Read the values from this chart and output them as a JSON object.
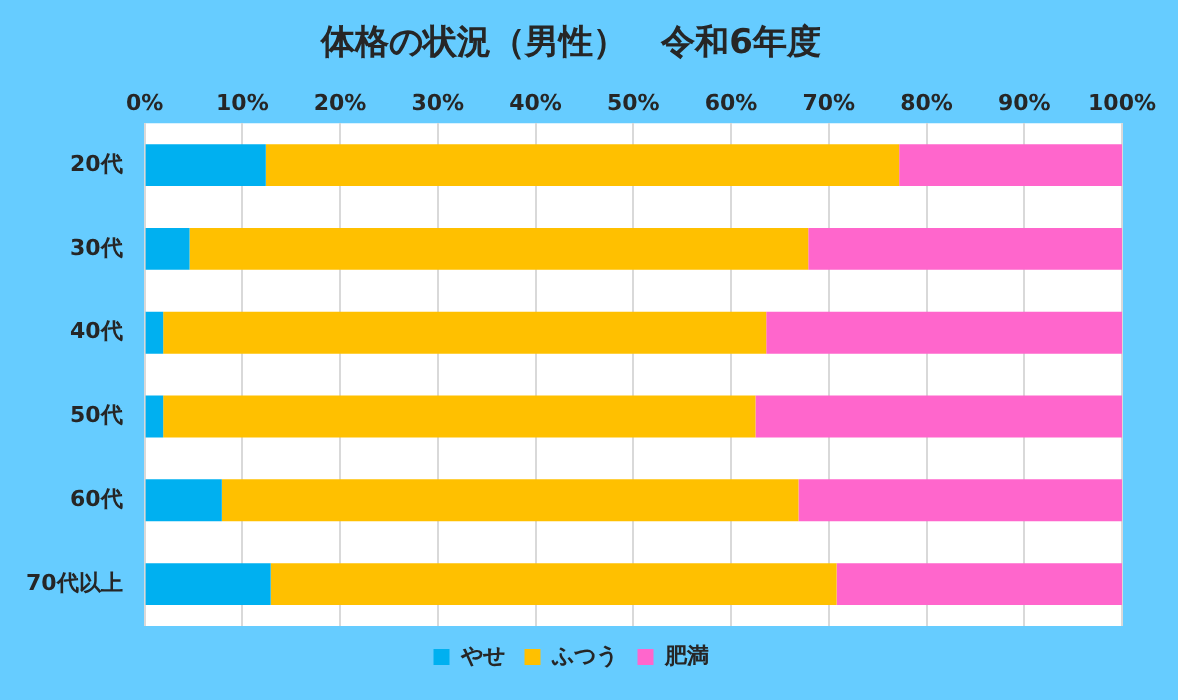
{
  "chart_data": {
    "type": "bar",
    "orientation": "horizontal",
    "stacked": true,
    "title": "体格の状況（男性）　令和6年度",
    "categories": [
      "20代",
      "30代",
      "40代",
      "50代",
      "60代",
      "70代以上"
    ],
    "series": [
      {
        "name": "やせ",
        "color": "#00b0f0",
        "values": [
          12.4,
          4.6,
          1.9,
          1.9,
          7.9,
          12.9
        ]
      },
      {
        "name": "ふつう",
        "color": "#ffc000",
        "values": [
          64.8,
          63.3,
          61.7,
          60.6,
          59.0,
          57.9
        ]
      },
      {
        "name": "肥満",
        "color": "#ff66cc",
        "values": [
          22.8,
          32.1,
          36.4,
          37.5,
          33.1,
          29.2
        ]
      }
    ],
    "xlim": [
      0,
      100
    ],
    "xticks": [
      {
        "value": 0,
        "label": "0%"
      },
      {
        "value": 10,
        "label": "10%"
      },
      {
        "value": 20,
        "label": "20%"
      },
      {
        "value": 30,
        "label": "30%"
      },
      {
        "value": 40,
        "label": "40%"
      },
      {
        "value": 50,
        "label": "50%"
      },
      {
        "value": 60,
        "label": "60%"
      },
      {
        "value": 70,
        "label": "70%"
      },
      {
        "value": 80,
        "label": "80%"
      },
      {
        "value": 90,
        "label": "90%"
      },
      {
        "value": 100,
        "label": "100%"
      }
    ],
    "grid": "x",
    "legend": "bottom"
  }
}
